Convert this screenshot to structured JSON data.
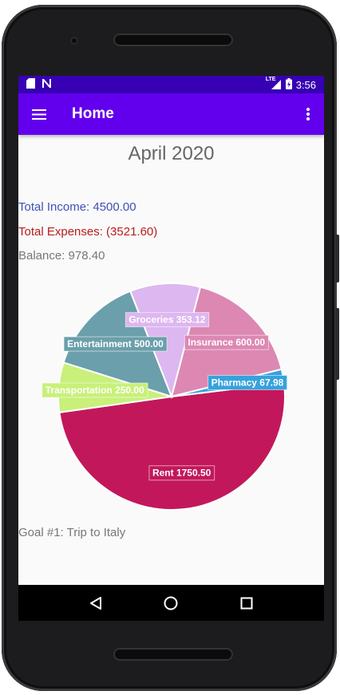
{
  "status_bar": {
    "left_icons": [
      "sd-card-icon",
      "n-notification-icon"
    ],
    "network_label": "LTE",
    "time": "3:56"
  },
  "app_bar": {
    "title": "Home",
    "background_color": "#6200ee",
    "status_color": "#3700b3"
  },
  "summary": {
    "month": "April 2020",
    "total_income": "Total Income: 4500.00",
    "total_expenses": "Total Expenses: (3521.60)",
    "balance": "Balance: 978.40"
  },
  "chart_data": {
    "type": "pie",
    "slices": [
      {
        "label": "Rent 1750.50",
        "value": 1750.5,
        "color": "#c2185b"
      },
      {
        "label": "Transportation 250.00",
        "value": 250.0,
        "color": "#c8f07a"
      },
      {
        "label": "Entertainment 500.00",
        "value": 500.0,
        "color": "#6a9fab"
      },
      {
        "label": "Groceries 353.12",
        "value": 353.12,
        "color": "#ddb7ef"
      },
      {
        "label": "Insurance 600.00",
        "value": 600.0,
        "color": "#dc88b3"
      },
      {
        "label": "Pharmacy 67.98",
        "value": 67.98,
        "color": "#35a2dc"
      }
    ]
  },
  "goal": "Goal #1: Trip to Italy",
  "nav_bar": {
    "buttons": [
      "back-icon",
      "home-icon",
      "recents-icon"
    ]
  }
}
